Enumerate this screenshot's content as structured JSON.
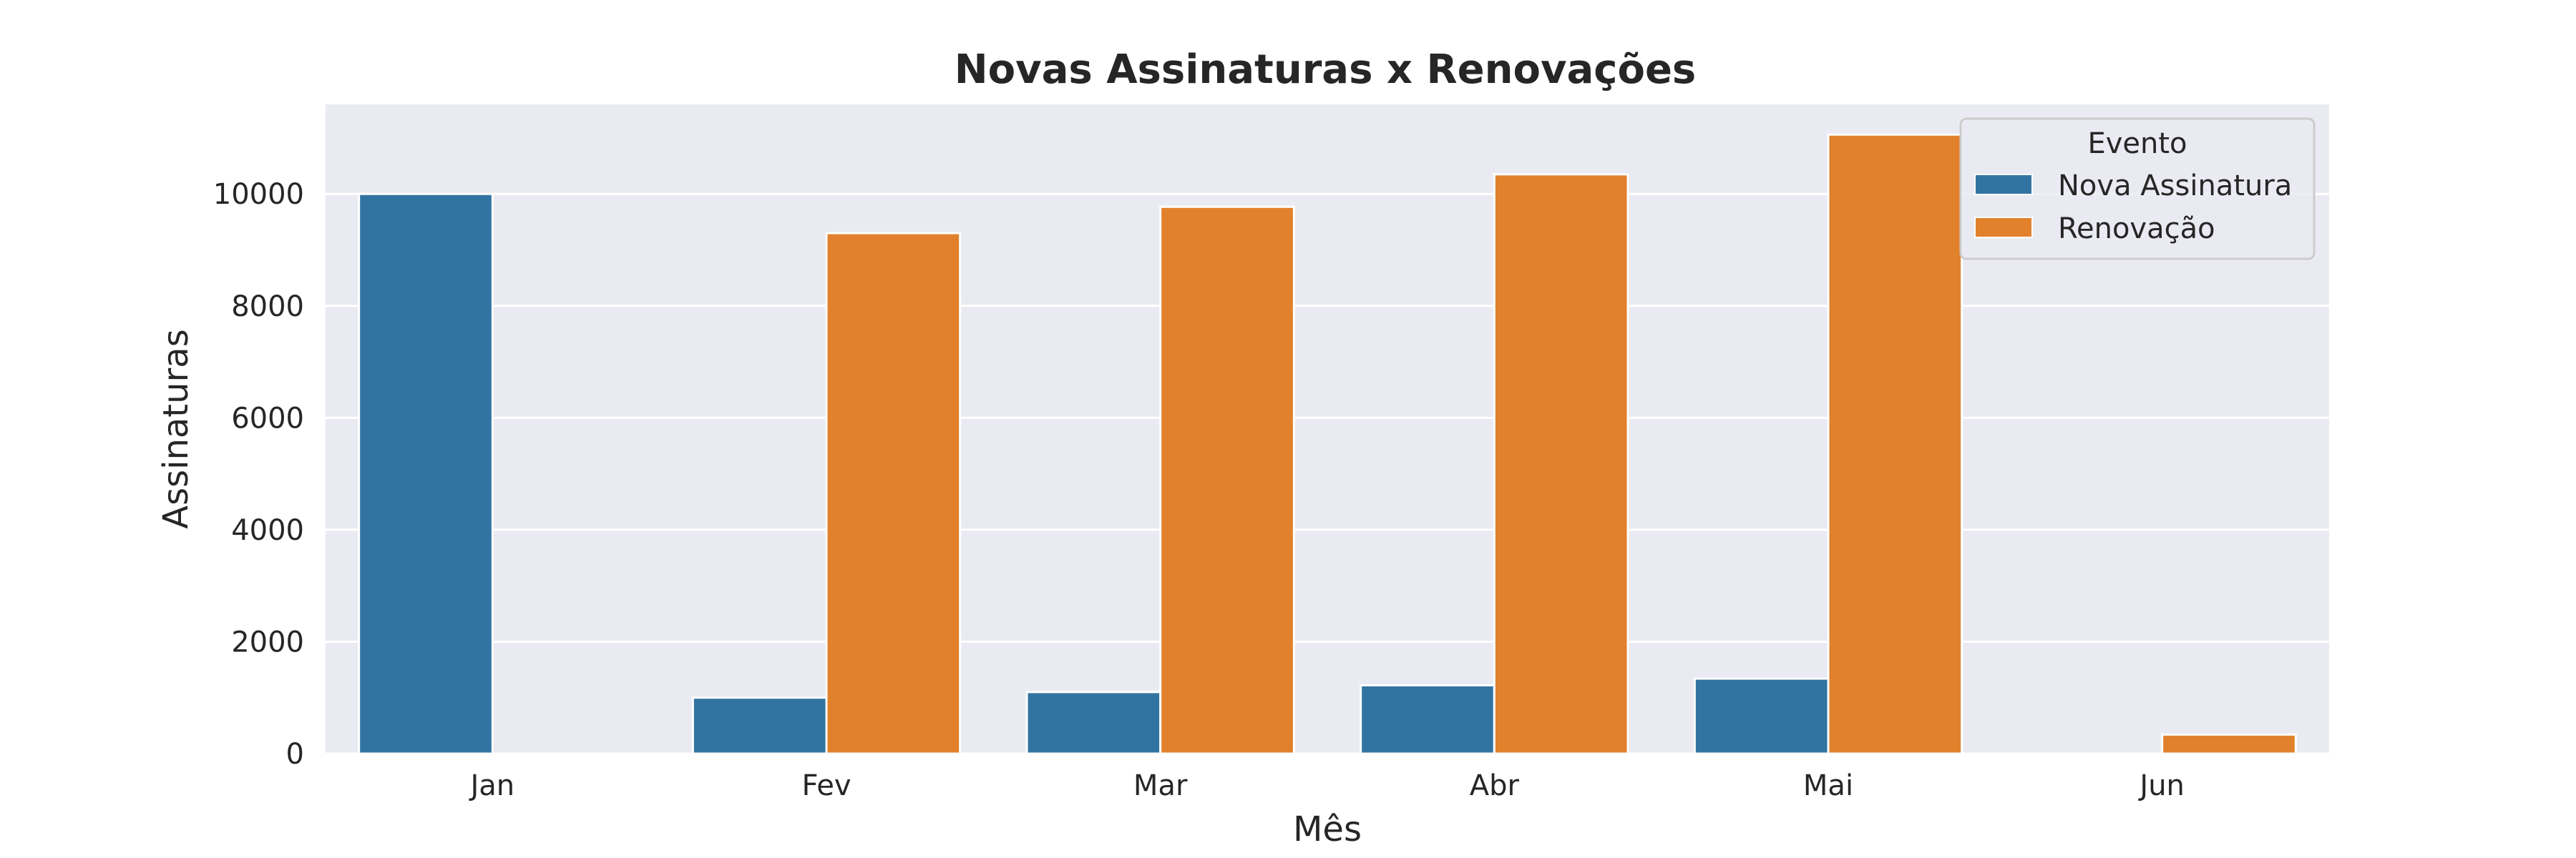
{
  "chart_data": {
    "type": "bar",
    "title": "Novas Assinaturas x Renovações",
    "xlabel": "Mês",
    "ylabel": "Assinaturas",
    "categories": [
      "Jan",
      "Fev",
      "Mar",
      "Abr",
      "Mai",
      "Jun"
    ],
    "series": [
      {
        "name": "Nova Assinatura",
        "color": "#3274a1",
        "values": [
          10000,
          1000,
          1100,
          1220,
          1340,
          0
        ]
      },
      {
        "name": "Renovação",
        "color": "#e1812c",
        "values": [
          0,
          9300,
          9770,
          10350,
          11060,
          340
        ]
      }
    ],
    "ylim": [
      0,
      11600
    ],
    "yticks": [
      0,
      2000,
      4000,
      6000,
      8000,
      10000
    ],
    "grid": true,
    "legend": {
      "title": "Evento",
      "position": "top-right"
    },
    "background": "#eaeaf2"
  }
}
